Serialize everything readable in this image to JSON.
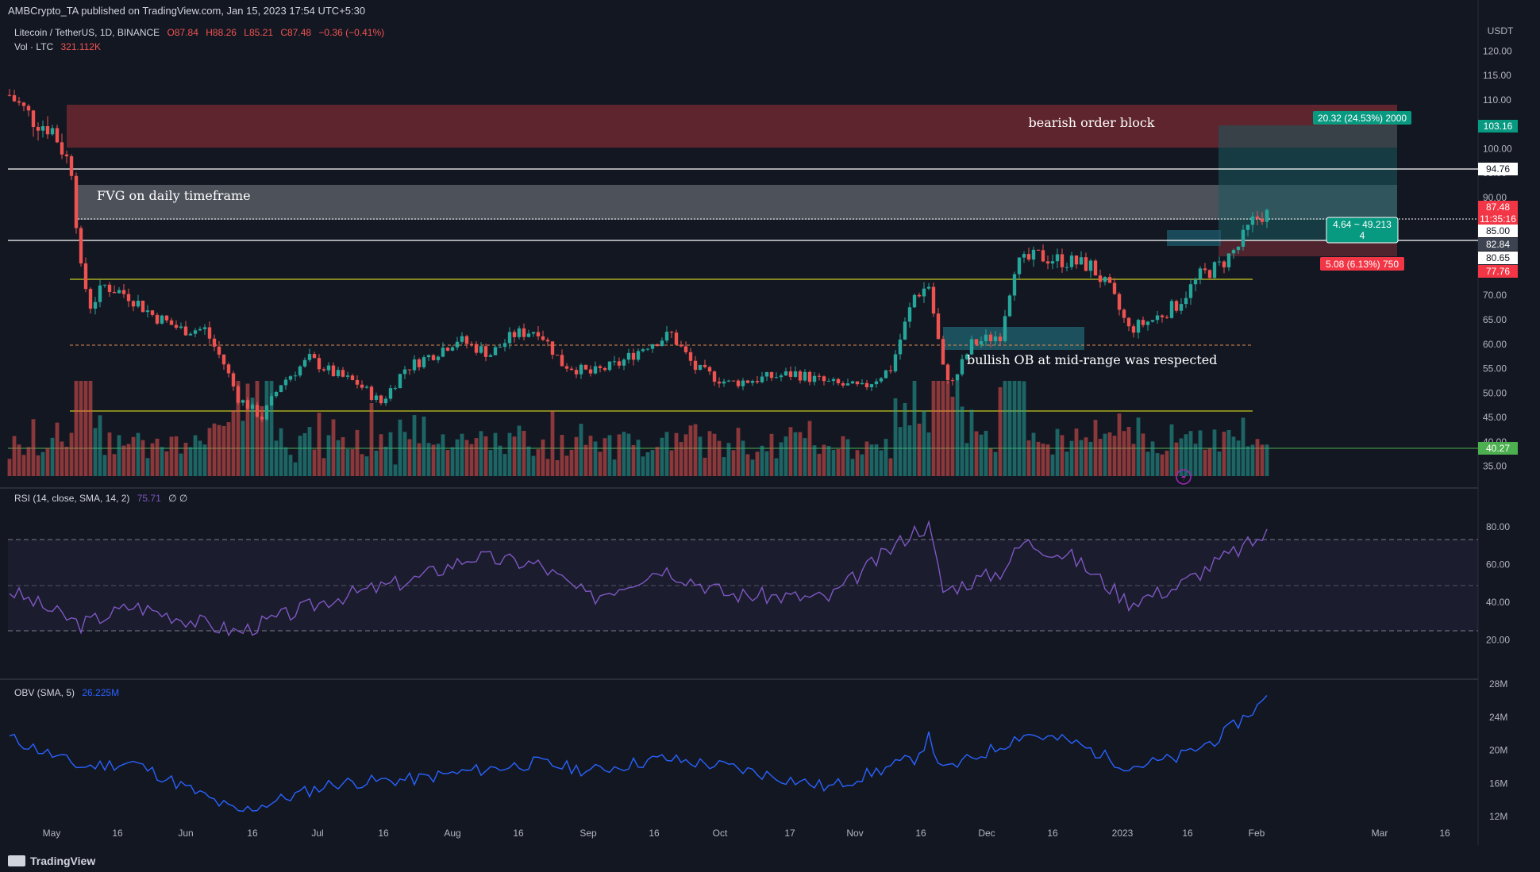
{
  "header": {
    "published": "AMBCrypto_TA published on TradingView.com, Jan 15, 2023 17:54 UTC+5:30"
  },
  "legend": {
    "symbol": "Litecoin / TetherUS, 1D, BINANCE",
    "open": "O87.84",
    "high": "H88.26",
    "low": "L85.21",
    "close": "C87.48",
    "change": "−0.36 (−0.41%)",
    "vol_label": "Vol · LTC",
    "vol_value": "321.112K",
    "rsi_label": "RSI (14, close, SMA, 14, 2)",
    "rsi_value": "75.71",
    "rsi_extra": "∅ ∅",
    "obv_label": "OBV (SMA, 5)",
    "obv_value": "26.225M"
  },
  "currency": "USDT",
  "annotations": {
    "bearish_ob": "bearish order block",
    "fvg": "FVG on daily timeframe",
    "bullish_ob": "bullish OB at mid-range was respected"
  },
  "badges": {
    "target": "20.32 (24.53%) 2000",
    "risk": "5.08 (6.13%) 750",
    "ratio_line1": "4.64 ~ 49.213",
    "ratio_line2": "4"
  },
  "price_labels": [
    {
      "text": "103.16",
      "color": "#089981"
    },
    {
      "text": "94.76",
      "color": "#ffffff"
    },
    {
      "text": "87.48",
      "color": "#f23645"
    },
    {
      "text": "11:35:16",
      "color": "#f23645"
    },
    {
      "text": "85.00",
      "color": "#ffffff"
    },
    {
      "text": "82.84",
      "color": "#3d4350"
    },
    {
      "text": "80.65",
      "color": "#ffffff"
    },
    {
      "text": "77.76",
      "color": "#f23645"
    },
    {
      "text": "40.27",
      "color": "#4caf50"
    }
  ],
  "price_ticks": [
    "120.00",
    "115.00",
    "110.00",
    "105.00",
    "100.00",
    "95.00",
    "90.00",
    "85.00",
    "80.00",
    "75.00",
    "70.00",
    "65.00",
    "60.00",
    "55.00",
    "50.00",
    "45.00",
    "40.00",
    "35.00"
  ],
  "rsi_ticks": [
    "80.00",
    "60.00",
    "40.00",
    "20.00"
  ],
  "obv_ticks": [
    "28M",
    "24M",
    "20M",
    "16M",
    "12M"
  ],
  "x_ticks": [
    "May",
    "16",
    "Jun",
    "16",
    "Jul",
    "16",
    "Aug",
    "16",
    "Sep",
    "16",
    "Oct",
    "17",
    "Nov",
    "16",
    "Dec",
    "16",
    "2023",
    "16",
    "Feb",
    "Mar",
    "16"
  ],
  "footer": {
    "brand": "TradingView"
  },
  "colors": {
    "up": "#26a69a",
    "down": "#ef5350",
    "rsi": "#7e57c2",
    "obv": "#2962ff",
    "yellow": "#c8c81e"
  },
  "chart_data": {
    "type": "candlestick",
    "title": "Litecoin / TetherUS, 1D, BINANCE",
    "price_range": [
      33,
      122
    ],
    "levels": {
      "resistance_white": 94.76,
      "support_white": 82.84,
      "range_high": 73.5,
      "range_mid": 60.5,
      "range_low": 47.5,
      "green_line": 40.27
    },
    "bearish_order_block": [
      99.2,
      107.2
    ],
    "fvg": [
      86.2,
      92.4
    ],
    "bullish_ob": [
      59.8,
      63.8
    ],
    "position": {
      "entry": 82.84,
      "target": 103.16,
      "stop": 77.76
    },
    "close_path_key": [
      [
        "Apr 26",
        111
      ],
      [
        "May 1",
        106
      ],
      [
        "May 5",
        104
      ],
      [
        "May 9",
        96
      ],
      [
        "May 11",
        75
      ],
      [
        "May 13",
        68
      ],
      [
        "May 16",
        72
      ],
      [
        "May 21",
        70
      ],
      [
        "May 26",
        66
      ],
      [
        "Jun 1",
        63
      ],
      [
        "Jun 6",
        63
      ],
      [
        "Jun 10",
        56
      ],
      [
        "Jun 13",
        49
      ],
      [
        "Jun 18",
        45
      ],
      [
        "Jun 22",
        52
      ],
      [
        "Jun 28",
        57
      ],
      [
        "Jul 3",
        54
      ],
      [
        "Jul 8",
        52
      ],
      [
        "Jul 13",
        48
      ],
      [
        "Jul 18",
        55
      ],
      [
        "Jul 24",
        58
      ],
      [
        "Jul 29",
        61
      ],
      [
        "Aug 5",
        58
      ],
      [
        "Aug 10",
        62
      ],
      [
        "Aug 15",
        63
      ],
      [
        "Aug 20",
        56
      ],
      [
        "Aug 26",
        54
      ],
      [
        "Sep 1",
        56
      ],
      [
        "Sep 7",
        60
      ],
      [
        "Sep 12",
        62
      ],
      [
        "Sep 17",
        55
      ],
      [
        "Sep 24",
        52
      ],
      [
        "Oct 1",
        53
      ],
      [
        "Oct 8",
        54
      ],
      [
        "Oct 15",
        52
      ],
      [
        "Oct 22",
        51
      ],
      [
        "Oct 28",
        55
      ],
      [
        "Nov 2",
        70
      ],
      [
        "Nov 5",
        72
      ],
      [
        "Nov 8",
        55
      ],
      [
        "Nov 10",
        52
      ],
      [
        "Nov 14",
        60
      ],
      [
        "Nov 20",
        62
      ],
      [
        "Nov 23",
        76
      ],
      [
        "Nov 28",
        78
      ],
      [
        "Dec 4",
        77
      ],
      [
        "Dec 9",
        76
      ],
      [
        "Dec 13",
        71
      ],
      [
        "Dec 17",
        63
      ],
      [
        "Dec 22",
        65
      ],
      [
        "Dec 27",
        68
      ],
      [
        "Jan 1",
        74
      ],
      [
        "Jan 5",
        76
      ],
      [
        "Jan 9",
        80
      ],
      [
        "Jan 12",
        85
      ],
      [
        "Jan 15",
        87.48
      ]
    ],
    "rsi_range": [
      10,
      90
    ],
    "rsi_key": [
      [
        "Apr 26",
        46
      ],
      [
        "May 11",
        28
      ],
      [
        "May 22",
        38
      ],
      [
        "Jun 13",
        24
      ],
      [
        "Jul 3",
        42
      ],
      [
        "Jul 20",
        52
      ],
      [
        "Aug 1",
        64
      ],
      [
        "Aug 15",
        60
      ],
      [
        "Aug 26",
        42
      ],
      [
        "Sep 10",
        58
      ],
      [
        "Sep 24",
        44
      ],
      [
        "Oct 15",
        42
      ],
      [
        "Nov 2",
        78
      ],
      [
        "Nov 5",
        80
      ],
      [
        "Nov 8",
        46
      ],
      [
        "Nov 20",
        56
      ],
      [
        "Nov 25",
        72
      ],
      [
        "Dec 5",
        64
      ],
      [
        "Dec 17",
        40
      ],
      [
        "Dec 27",
        48
      ],
      [
        "Jan 5",
        62
      ],
      [
        "Jan 15",
        76
      ]
    ],
    "obv_range": [
      10,
      28
    ],
    "obv_key": [
      [
        "Apr 26",
        21.5
      ],
      [
        "May 11",
        18
      ],
      [
        "May 22",
        18.5
      ],
      [
        "Jun 13",
        12.5
      ],
      [
        "Jul 3",
        16
      ],
      [
        "Jul 20",
        16.5
      ],
      [
        "Aug 1",
        17.5
      ],
      [
        "Aug 15",
        18.5
      ],
      [
        "Aug 26",
        17.5
      ],
      [
        "Sep 10",
        19
      ],
      [
        "Sep 24",
        18
      ],
      [
        "Oct 15",
        15.5
      ],
      [
        "Nov 2",
        19
      ],
      [
        "Nov 5",
        21.5
      ],
      [
        "Nov 8",
        17.5
      ],
      [
        "Nov 20",
        20.5
      ],
      [
        "Nov 25",
        22
      ],
      [
        "Dec 5",
        21
      ],
      [
        "Dec 17",
        18
      ],
      [
        "Dec 27",
        19
      ],
      [
        "Jan 5",
        21.5
      ],
      [
        "Jan 15",
        26.2
      ]
    ]
  }
}
